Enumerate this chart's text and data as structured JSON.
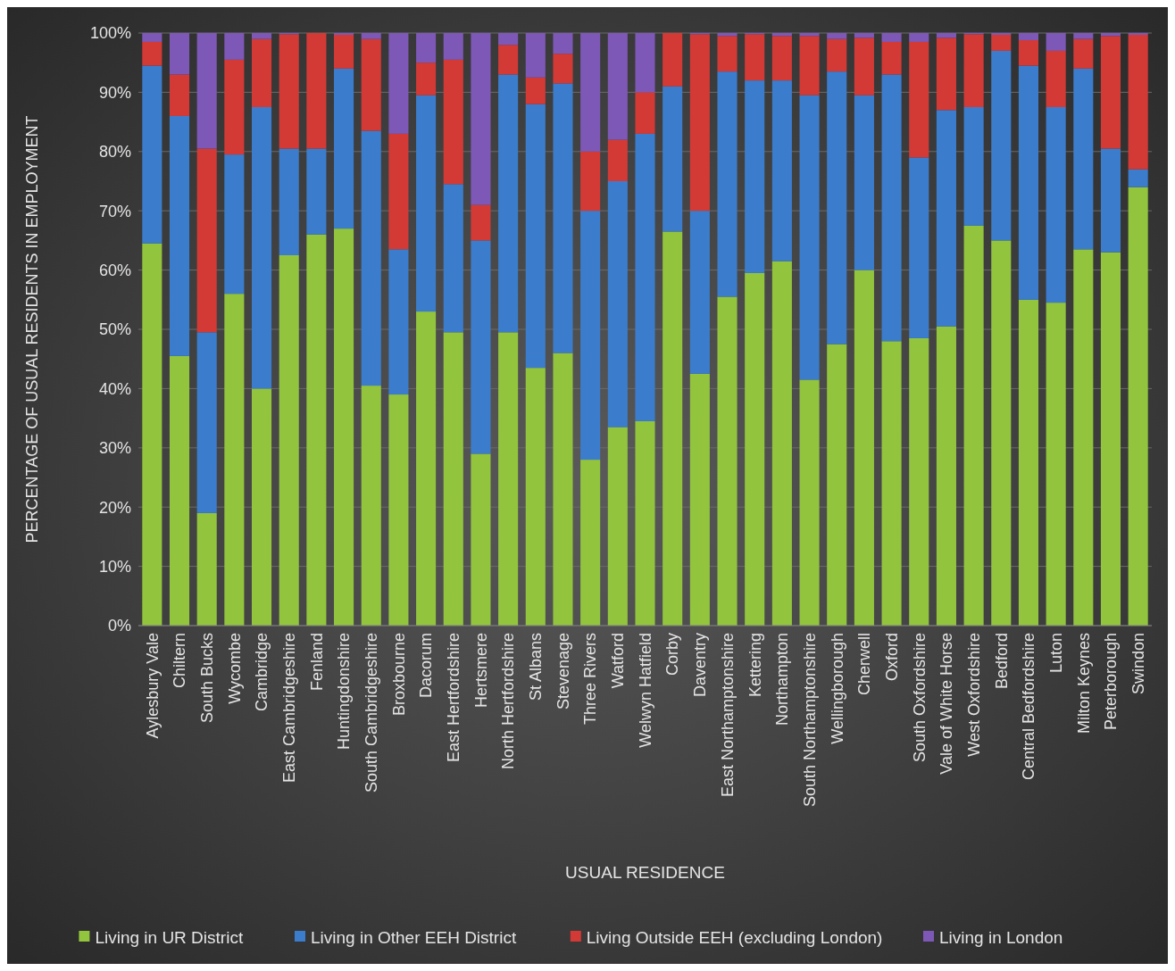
{
  "chart_data": {
    "type": "bar",
    "stacked": true,
    "xlabel": "USUAL RESIDENCE",
    "ylabel": "PERCENTAGE OF  USUAL RESIDENTS IN EMPLOYMENT",
    "categories": [
      "Aylesbury Vale",
      "Chiltern",
      "South Bucks",
      "Wycombe",
      "Cambridge",
      "East Cambridgeshire",
      "Fenland",
      "Huntingdonshire",
      "South Cambridgeshire",
      "Broxbourne",
      "Dacorum",
      "East Hertfordshire",
      "Hertsmere",
      "North Hertfordshire",
      "St Albans",
      "Stevenage",
      "Three Rivers",
      "Watford",
      "Welwyn Hatfield",
      "Corby",
      "Daventry",
      "East Northamptonshire",
      "Kettering",
      "Northampton",
      "South Northamptonshire",
      "Wellingborough",
      "Cherwell",
      "Oxford",
      "South Oxfordshire",
      "Vale of White Horse",
      "West Oxfordshire",
      "Bedford",
      "Central Bedfordshire",
      "Luton",
      "Milton Keynes",
      "Peterborough",
      "Swindon"
    ],
    "series": [
      {
        "name": "Living in UR District",
        "color": "#92c43e",
        "values": [
          64.5,
          45.5,
          19,
          56,
          40,
          62.5,
          66,
          67,
          40.5,
          39,
          53,
          49.5,
          29,
          49.5,
          43.5,
          46,
          28,
          33.5,
          34.5,
          66.5,
          42.5,
          55.5,
          59.5,
          61.5,
          41.5,
          47.5,
          60,
          48,
          48.5,
          50.5,
          67.5,
          65,
          55,
          54.5,
          63.5,
          63,
          74
        ]
      },
      {
        "name": "Living in Other EEH District",
        "color": "#3b7dcc",
        "values": [
          30,
          40.5,
          30.5,
          23.5,
          47.5,
          18,
          14.5,
          27,
          43,
          24.5,
          36.5,
          25,
          36,
          43.5,
          44.5,
          45.5,
          42,
          41.5,
          48.5,
          24.5,
          27.5,
          38,
          32.5,
          30.5,
          48,
          46,
          29.5,
          45,
          30.5,
          36.5,
          20,
          32,
          39.5,
          33,
          30.5,
          17.5,
          3
        ]
      },
      {
        "name": "Living Outside EEH (excluding London)",
        "color": "#d33a36",
        "values": [
          4,
          7,
          31,
          16,
          11.5,
          19.3,
          19.5,
          5.7,
          15.5,
          19.5,
          5.5,
          21,
          6,
          5,
          4.5,
          5,
          10,
          7,
          7,
          9,
          29.8,
          6,
          7.8,
          7.5,
          10,
          5.5,
          9.7,
          5.5,
          19.5,
          12.2,
          12.3,
          2.7,
          4.3,
          9.5,
          5,
          19,
          22.7
        ]
      },
      {
        "name": "Living in London",
        "color": "#7e58b6",
        "values": [
          1.5,
          7,
          19.5,
          4.5,
          1,
          0.2,
          0,
          0.3,
          1,
          17,
          5,
          4.5,
          29,
          2,
          7.5,
          3.5,
          20,
          18,
          10,
          0,
          0.2,
          0.5,
          0.2,
          0.5,
          0.5,
          1,
          0.8,
          1.5,
          1.5,
          0.8,
          0.2,
          0.3,
          1.2,
          3,
          1,
          0.5,
          0.3
        ]
      }
    ],
    "ylim": [
      0,
      100
    ],
    "yticks": [
      {
        "value": 0,
        "label": "0%"
      },
      {
        "value": 10,
        "label": "10%"
      },
      {
        "value": 20,
        "label": "20%"
      },
      {
        "value": 30,
        "label": "30%"
      },
      {
        "value": 40,
        "label": "40%"
      },
      {
        "value": 50,
        "label": "50%"
      },
      {
        "value": 60,
        "label": "60%"
      },
      {
        "value": 70,
        "label": "70%"
      },
      {
        "value": 80,
        "label": "80%"
      },
      {
        "value": 90,
        "label": "90%"
      },
      {
        "value": 100,
        "label": "100%"
      }
    ],
    "grid": "y",
    "legend": "bottom"
  }
}
